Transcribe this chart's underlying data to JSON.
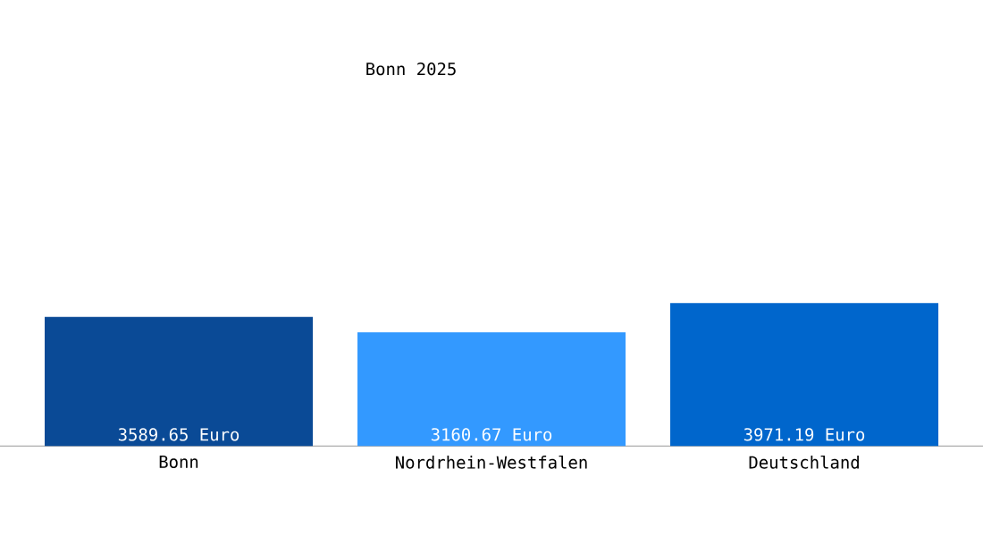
{
  "chart_data": {
    "type": "bar",
    "title": "Bonn 2025",
    "categories": [
      "Bonn",
      "Nordrhein-Westfalen",
      "Deutschland"
    ],
    "values": [
      3589.65,
      3160.67,
      3971.19
    ],
    "colors": [
      "#0a4a96",
      "#3399ff",
      "#0066cc"
    ],
    "value_labels": [
      "3589.65 Euro",
      "3160.67 Euro",
      "3971.19 Euro"
    ],
    "tick_labels": "x",
    "grid": false
  }
}
